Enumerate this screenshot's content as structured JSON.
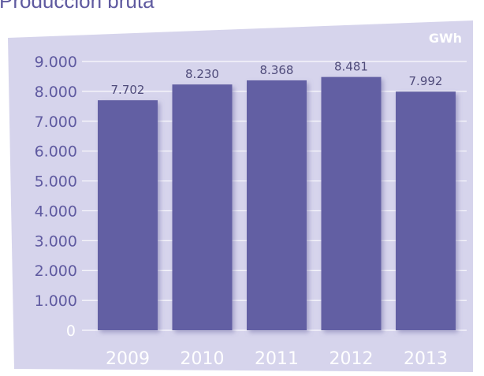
{
  "chart_data": {
    "type": "bar",
    "title": "Producción bruta",
    "unit": "GWh",
    "categories": [
      "2009",
      "2010",
      "2011",
      "2012",
      "2013"
    ],
    "values": [
      7702,
      8230,
      8368,
      8481,
      7992
    ],
    "data_labels": [
      "7.702",
      "8.230",
      "8.368",
      "8.481",
      "7.992"
    ],
    "yticks": [
      0,
      1000,
      2000,
      3000,
      4000,
      5000,
      6000,
      7000,
      8000,
      9000
    ],
    "ytick_labels": [
      "0",
      "1.000",
      "2.000",
      "3.000",
      "4.000",
      "5.000",
      "6.000",
      "7.000",
      "8.000",
      "9.000"
    ],
    "ylim": [
      0,
      9000
    ],
    "grid": true,
    "colors": {
      "panel": "#d6d4ec",
      "bar": "#625fa3",
      "bar_shadow": "#9a97c4",
      "title": "#5f5aa0",
      "axis_text": "#5f5aa0",
      "label_text": "#4f4b7a",
      "highlight_text": "#ffffff"
    }
  }
}
